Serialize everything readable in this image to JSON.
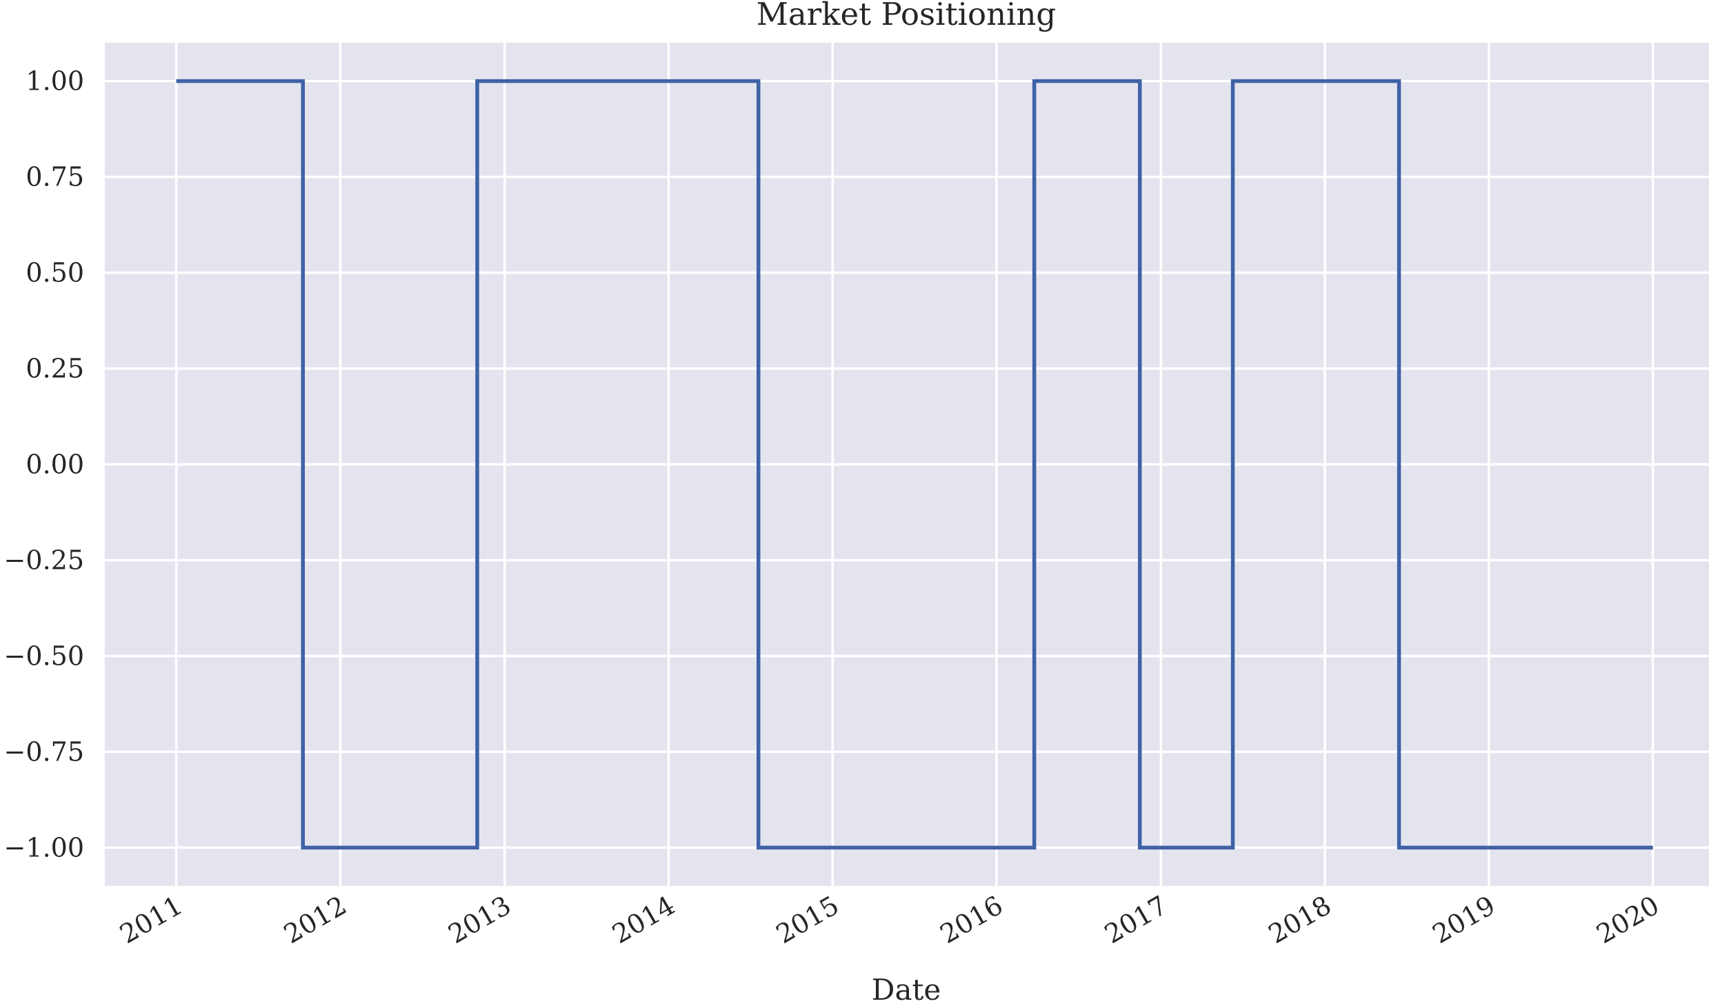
{
  "chart_data": {
    "type": "line",
    "title": "Market Positioning",
    "xlabel": "Date",
    "ylabel": "",
    "x_axis_type": "date",
    "xlim": [
      "2010-07-26",
      "2020-05-05"
    ],
    "ylim": [
      -1.1,
      1.1
    ],
    "x_ticks": [
      "2011-01-01",
      "2012-01-01",
      "2013-01-01",
      "2014-01-01",
      "2015-01-01",
      "2016-01-01",
      "2017-01-01",
      "2018-01-01",
      "2019-01-01",
      "2020-01-01"
    ],
    "x_tick_labels": [
      "2011",
      "2012",
      "2013",
      "2014",
      "2015",
      "2016",
      "2017",
      "2018",
      "2019",
      "2020"
    ],
    "y_ticks": [
      1.0,
      0.75,
      0.5,
      0.25,
      0.0,
      -0.25,
      -0.5,
      -0.75,
      -1.0
    ],
    "y_tick_labels": [
      "1.00",
      "0.75",
      "0.50",
      "0.25",
      "0.00",
      "−0.25",
      "−0.50",
      "−0.75",
      "−1.00"
    ],
    "grid": true,
    "background_color": "#e4e4ef",
    "grid_color": "#ffffff",
    "series": [
      {
        "color": "#3f62a6",
        "step": "post",
        "points": [
          {
            "x": "2011-01-01",
            "y": 1
          },
          {
            "x": "2011-10-10",
            "y": -1
          },
          {
            "x": "2012-11-01",
            "y": 1
          },
          {
            "x": "2014-07-20",
            "y": -1
          },
          {
            "x": "2016-03-25",
            "y": 1
          },
          {
            "x": "2016-11-15",
            "y": -1
          },
          {
            "x": "2017-06-10",
            "y": 1
          },
          {
            "x": "2018-06-15",
            "y": -1
          },
          {
            "x": "2020-01-01",
            "y": -1
          }
        ]
      }
    ]
  }
}
